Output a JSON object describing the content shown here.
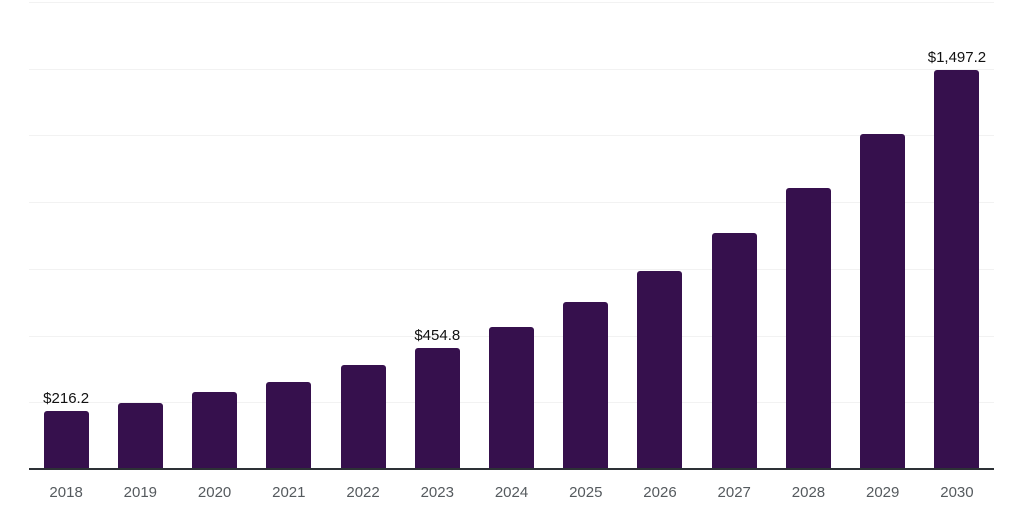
{
  "chart_data": {
    "type": "bar",
    "title": "",
    "xlabel": "",
    "ylabel": "",
    "categories": [
      "2018",
      "2019",
      "2020",
      "2021",
      "2022",
      "2023",
      "2024",
      "2025",
      "2026",
      "2027",
      "2028",
      "2029",
      "2030"
    ],
    "values": [
      216.2,
      249,
      287,
      328,
      389,
      454.8,
      533,
      626,
      743,
      883,
      1052,
      1256,
      1497.2
    ],
    "data_labels": {
      "2018": "$216.2",
      "2023": "$454.8",
      "2030": "$1,497.2"
    },
    "value_prefix": "$",
    "ylim": [
      0,
      1750
    ],
    "gridline_step": 250,
    "grid": true,
    "legend_position": "none",
    "y_tick_labels_visible": false
  },
  "colors": {
    "background": "#ffffff",
    "bar": "#36104d",
    "gridline": "#f2f2f2",
    "axis_line": "#2d3136",
    "tick_label": "#555a5e",
    "value_label": "#111111"
  }
}
